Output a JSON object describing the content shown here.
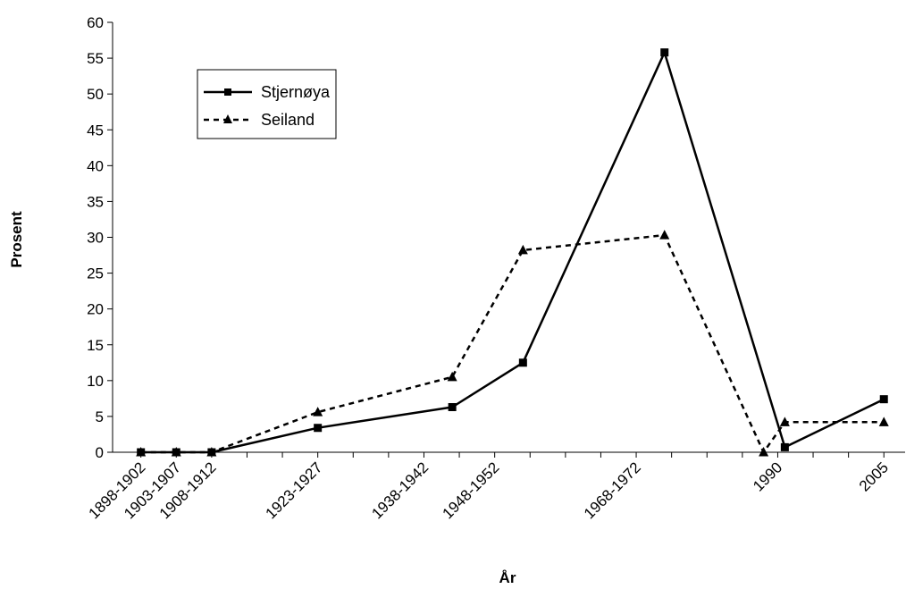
{
  "chart_data": {
    "type": "line",
    "title": "",
    "xlabel": "År",
    "ylabel": "Prosent",
    "ylim": [
      0,
      60
    ],
    "yticks": [
      "0",
      "5",
      "10",
      "15",
      "20",
      "25",
      "30",
      "35",
      "40",
      "45",
      "50",
      "55",
      "60"
    ],
    "x_range": [
      1896,
      2008
    ],
    "x_ticks": [
      {
        "label": "1898-1902",
        "x": 1900
      },
      {
        "label": "1903-1907",
        "x": 1905
      },
      {
        "label": "1908-1912",
        "x": 1910
      },
      {
        "label": "1923-1927",
        "x": 1925
      },
      {
        "label": "1938-1942",
        "x": 1940
      },
      {
        "label": "1948-1952",
        "x": 1950
      },
      {
        "label": "1968-1972",
        "x": 1970
      },
      {
        "label": "1990",
        "x": 1990
      },
      {
        "label": "2005",
        "x": 2005
      }
    ],
    "grid": false,
    "legend_position": "top-left",
    "series": [
      {
        "name": "Stjernøya",
        "style": "solid",
        "marker": "square",
        "color": "#000000",
        "points": [
          {
            "x": 1900,
            "y": 0
          },
          {
            "x": 1905,
            "y": 0
          },
          {
            "x": 1910,
            "y": 0
          },
          {
            "x": 1925,
            "y": 3.4
          },
          {
            "x": 1944,
            "y": 6.3
          },
          {
            "x": 1954,
            "y": 12.5
          },
          {
            "x": 1974,
            "y": 55.8
          },
          {
            "x": 1991,
            "y": 0.7
          },
          {
            "x": 2005,
            "y": 7.4
          }
        ]
      },
      {
        "name": "Seiland",
        "style": "dotted",
        "marker": "triangle",
        "color": "#000000",
        "points": [
          {
            "x": 1900,
            "y": 0
          },
          {
            "x": 1905,
            "y": 0
          },
          {
            "x": 1910,
            "y": 0
          },
          {
            "x": 1925,
            "y": 5.6
          },
          {
            "x": 1944,
            "y": 10.5
          },
          {
            "x": 1954,
            "y": 28.2
          },
          {
            "x": 1974,
            "y": 30.3
          },
          {
            "x": 1988,
            "y": 0
          },
          {
            "x": 1991,
            "y": 4.2
          },
          {
            "x": 2005,
            "y": 4.2
          }
        ]
      }
    ]
  }
}
